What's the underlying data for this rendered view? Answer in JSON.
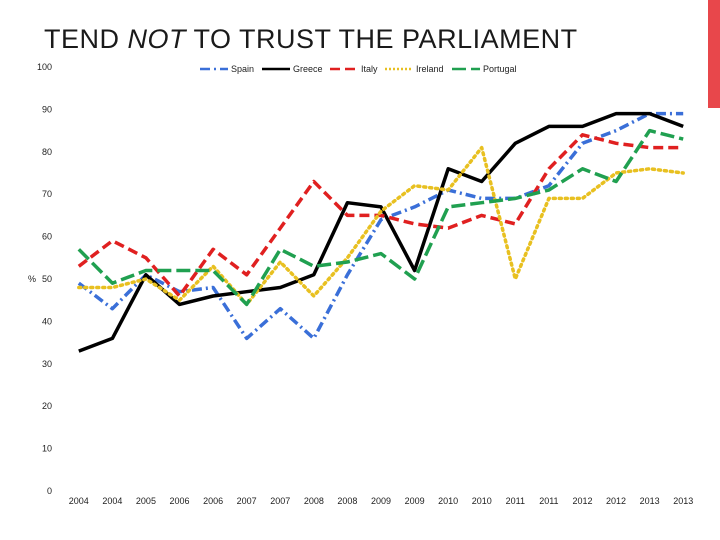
{
  "title": {
    "pre": "TEND ",
    "em": "NOT",
    "post": " TO TRUST THE PARLIAMENT"
  },
  "colors": {
    "accent_bar": "#e8474b"
  },
  "chart_data": {
    "type": "line",
    "title": "TEND NOT TO TRUST THE PARLIAMENT",
    "ylabel": "%",
    "xlabel": "",
    "ylim": [
      0,
      100
    ],
    "yticks": [
      "0",
      "10",
      "20",
      "30",
      "40",
      "50",
      "60",
      "70",
      "80",
      "90",
      "100"
    ],
    "categories": [
      "2004",
      "2004",
      "2005",
      "2006",
      "2006",
      "2007",
      "2007",
      "2008",
      "2008",
      "2009",
      "2009",
      "2010",
      "2010",
      "2011",
      "2011",
      "2012",
      "2012",
      "2013",
      "2013"
    ],
    "legend_position": "top",
    "grid": false,
    "series": [
      {
        "name": "Spain",
        "color": "#3a6fd8",
        "dash": "dashdot",
        "values": [
          49,
          43,
          51,
          47,
          48,
          36,
          43,
          36,
          51,
          64,
          67,
          71,
          69,
          69,
          72,
          82,
          85,
          89,
          89
        ]
      },
      {
        "name": "Greece",
        "color": "#000000",
        "dash": "solid",
        "values": [
          33,
          36,
          51,
          44,
          46,
          47,
          48,
          51,
          68,
          67,
          52,
          76,
          73,
          82,
          86,
          86,
          89,
          89,
          86
        ]
      },
      {
        "name": "Italy",
        "color": "#e02020",
        "dash": "dashed",
        "values": [
          53,
          59,
          55,
          46,
          57,
          51,
          62,
          73,
          65,
          65,
          63,
          62,
          65,
          63,
          76,
          84,
          82,
          81,
          81
        ]
      },
      {
        "name": "Ireland",
        "color": "#e8c020",
        "dash": "dotted",
        "values": [
          48,
          48,
          50,
          45,
          53,
          44,
          54,
          46,
          55,
          66,
          72,
          71,
          81,
          50,
          69,
          69,
          75,
          76,
          75
        ]
      },
      {
        "name": "Portugal",
        "color": "#20a050",
        "dash": "longdash",
        "values": [
          57,
          49,
          52,
          52,
          52,
          44,
          57,
          53,
          54,
          56,
          50,
          67,
          68,
          69,
          71,
          76,
          73,
          85,
          83
        ]
      }
    ]
  }
}
